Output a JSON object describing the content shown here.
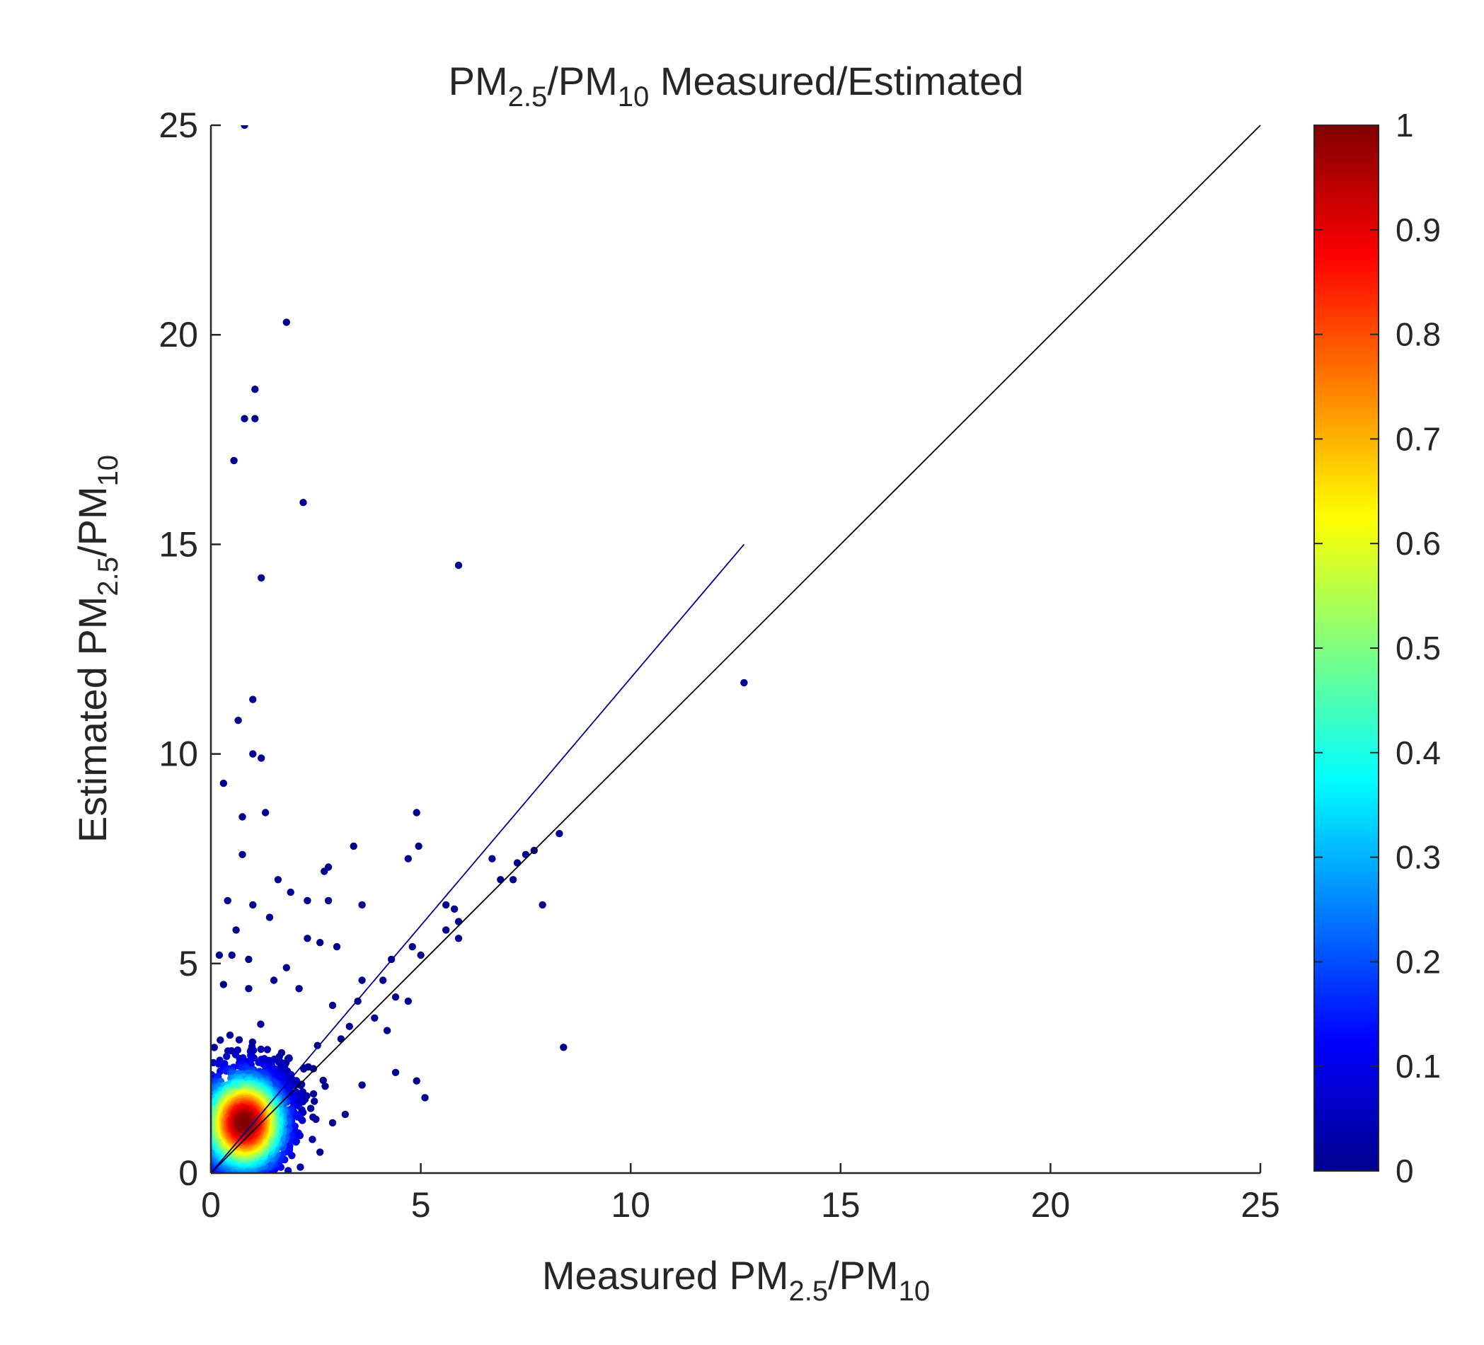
{
  "chart_data": {
    "type": "scatter",
    "title": {
      "parts": [
        "PM",
        "2.5",
        "/PM",
        "10",
        " Measured/Estimated"
      ]
    },
    "xlabel": {
      "parts": [
        "Measured PM",
        "2.5",
        "/PM",
        "10"
      ]
    },
    "ylabel": {
      "parts": [
        "Estimated PM",
        "2.5",
        "/PM",
        "10"
      ]
    },
    "xlim": [
      0,
      25
    ],
    "ylim": [
      0,
      25
    ],
    "x_ticks": [
      0,
      5,
      10,
      15,
      20,
      25
    ],
    "y_ticks": [
      0,
      5,
      10,
      15,
      20,
      25
    ],
    "x_tick_labels": [
      "0",
      "5",
      "10",
      "15",
      "20",
      "25"
    ],
    "y_tick_labels": [
      "0",
      "5",
      "10",
      "15",
      "20",
      "25"
    ],
    "grid": false,
    "colorbar": {
      "label_position": "right",
      "range": [
        0,
        1
      ],
      "ticks": [
        "0",
        "0.1",
        "0.2",
        "0.3",
        "0.4",
        "0.5",
        "0.6",
        "0.7",
        "0.8",
        "0.9",
        "1"
      ],
      "colormap": "jet",
      "colors": [
        "#00008f",
        "#0000ff",
        "#0080ff",
        "#00ffff",
        "#80ff80",
        "#ffff00",
        "#ff8000",
        "#ff0000",
        "#800000"
      ]
    },
    "lines": [
      {
        "name": "1:1 line",
        "color": "#000000",
        "x": [
          0,
          25
        ],
        "y": [
          0,
          25
        ]
      },
      {
        "name": "fit line",
        "color": "#00008f",
        "x": [
          0,
          12.7
        ],
        "y": [
          0,
          15.0
        ]
      }
    ],
    "series": [
      {
        "name": "sparse high-ratio outliers (density ~0)",
        "density": 0.0,
        "points": [
          [
            0.8,
            25.0
          ],
          [
            1.8,
            20.3
          ],
          [
            1.05,
            18.7
          ],
          [
            0.8,
            18.0
          ],
          [
            1.05,
            18.0
          ],
          [
            0.55,
            17.0
          ],
          [
            2.2,
            16.0
          ],
          [
            1.2,
            14.2
          ],
          [
            5.9,
            14.5
          ],
          [
            12.7,
            11.7
          ],
          [
            1.0,
            11.3
          ],
          [
            0.65,
            10.8
          ],
          [
            1.0,
            10.0
          ],
          [
            1.2,
            9.9
          ],
          [
            0.3,
            9.3
          ],
          [
            0.75,
            8.5
          ],
          [
            1.3,
            8.6
          ],
          [
            4.9,
            8.6
          ],
          [
            0.75,
            7.6
          ],
          [
            3.4,
            7.8
          ],
          [
            4.95,
            7.8
          ],
          [
            8.3,
            8.1
          ],
          [
            7.7,
            7.7
          ],
          [
            7.5,
            7.6
          ],
          [
            7.3,
            7.4
          ],
          [
            6.7,
            7.5
          ],
          [
            7.2,
            7.0
          ],
          [
            6.9,
            7.0
          ],
          [
            2.8,
            7.3
          ],
          [
            2.7,
            7.2
          ],
          [
            4.7,
            7.5
          ],
          [
            1.6,
            7.0
          ],
          [
            1.9,
            6.7
          ],
          [
            2.3,
            6.5
          ],
          [
            2.8,
            6.5
          ],
          [
            3.6,
            6.4
          ],
          [
            7.9,
            6.4
          ],
          [
            5.6,
            6.4
          ],
          [
            5.8,
            6.3
          ],
          [
            5.9,
            6.0
          ],
          [
            5.6,
            5.8
          ],
          [
            5.9,
            5.6
          ],
          [
            0.4,
            6.5
          ],
          [
            1.0,
            6.4
          ],
          [
            0.6,
            5.8
          ],
          [
            1.4,
            6.1
          ],
          [
            2.6,
            5.5
          ],
          [
            3.0,
            5.4
          ],
          [
            4.8,
            5.4
          ],
          [
            5.0,
            5.2
          ],
          [
            4.3,
            5.1
          ],
          [
            0.2,
            5.2
          ],
          [
            0.5,
            5.2
          ],
          [
            0.9,
            5.1
          ],
          [
            1.8,
            4.9
          ],
          [
            2.3,
            5.6
          ],
          [
            3.6,
            4.6
          ],
          [
            4.1,
            4.6
          ],
          [
            4.4,
            4.2
          ],
          [
            4.7,
            4.1
          ],
          [
            8.4,
            3.0
          ],
          [
            4.4,
            2.4
          ],
          [
            4.9,
            2.2
          ],
          [
            5.1,
            1.8
          ],
          [
            2.6,
            0.5
          ],
          [
            3.6,
            2.1
          ],
          [
            3.2,
            1.4
          ],
          [
            2.9,
            1.2
          ],
          [
            3.3,
            3.5
          ],
          [
            3.9,
            3.7
          ],
          [
            4.2,
            3.4
          ],
          [
            3.5,
            4.1
          ],
          [
            2.1,
            4.4
          ],
          [
            1.5,
            4.6
          ],
          [
            0.9,
            4.4
          ],
          [
            0.3,
            4.5
          ],
          [
            2.9,
            4.0
          ],
          [
            3.1,
            3.2
          ]
        ]
      },
      {
        "name": "dense cluster near origin",
        "density_peak": 1.0,
        "center": [
          0.8,
          1.2
        ],
        "spread": [
          0.55,
          0.65
        ],
        "count": 2600
      }
    ]
  }
}
